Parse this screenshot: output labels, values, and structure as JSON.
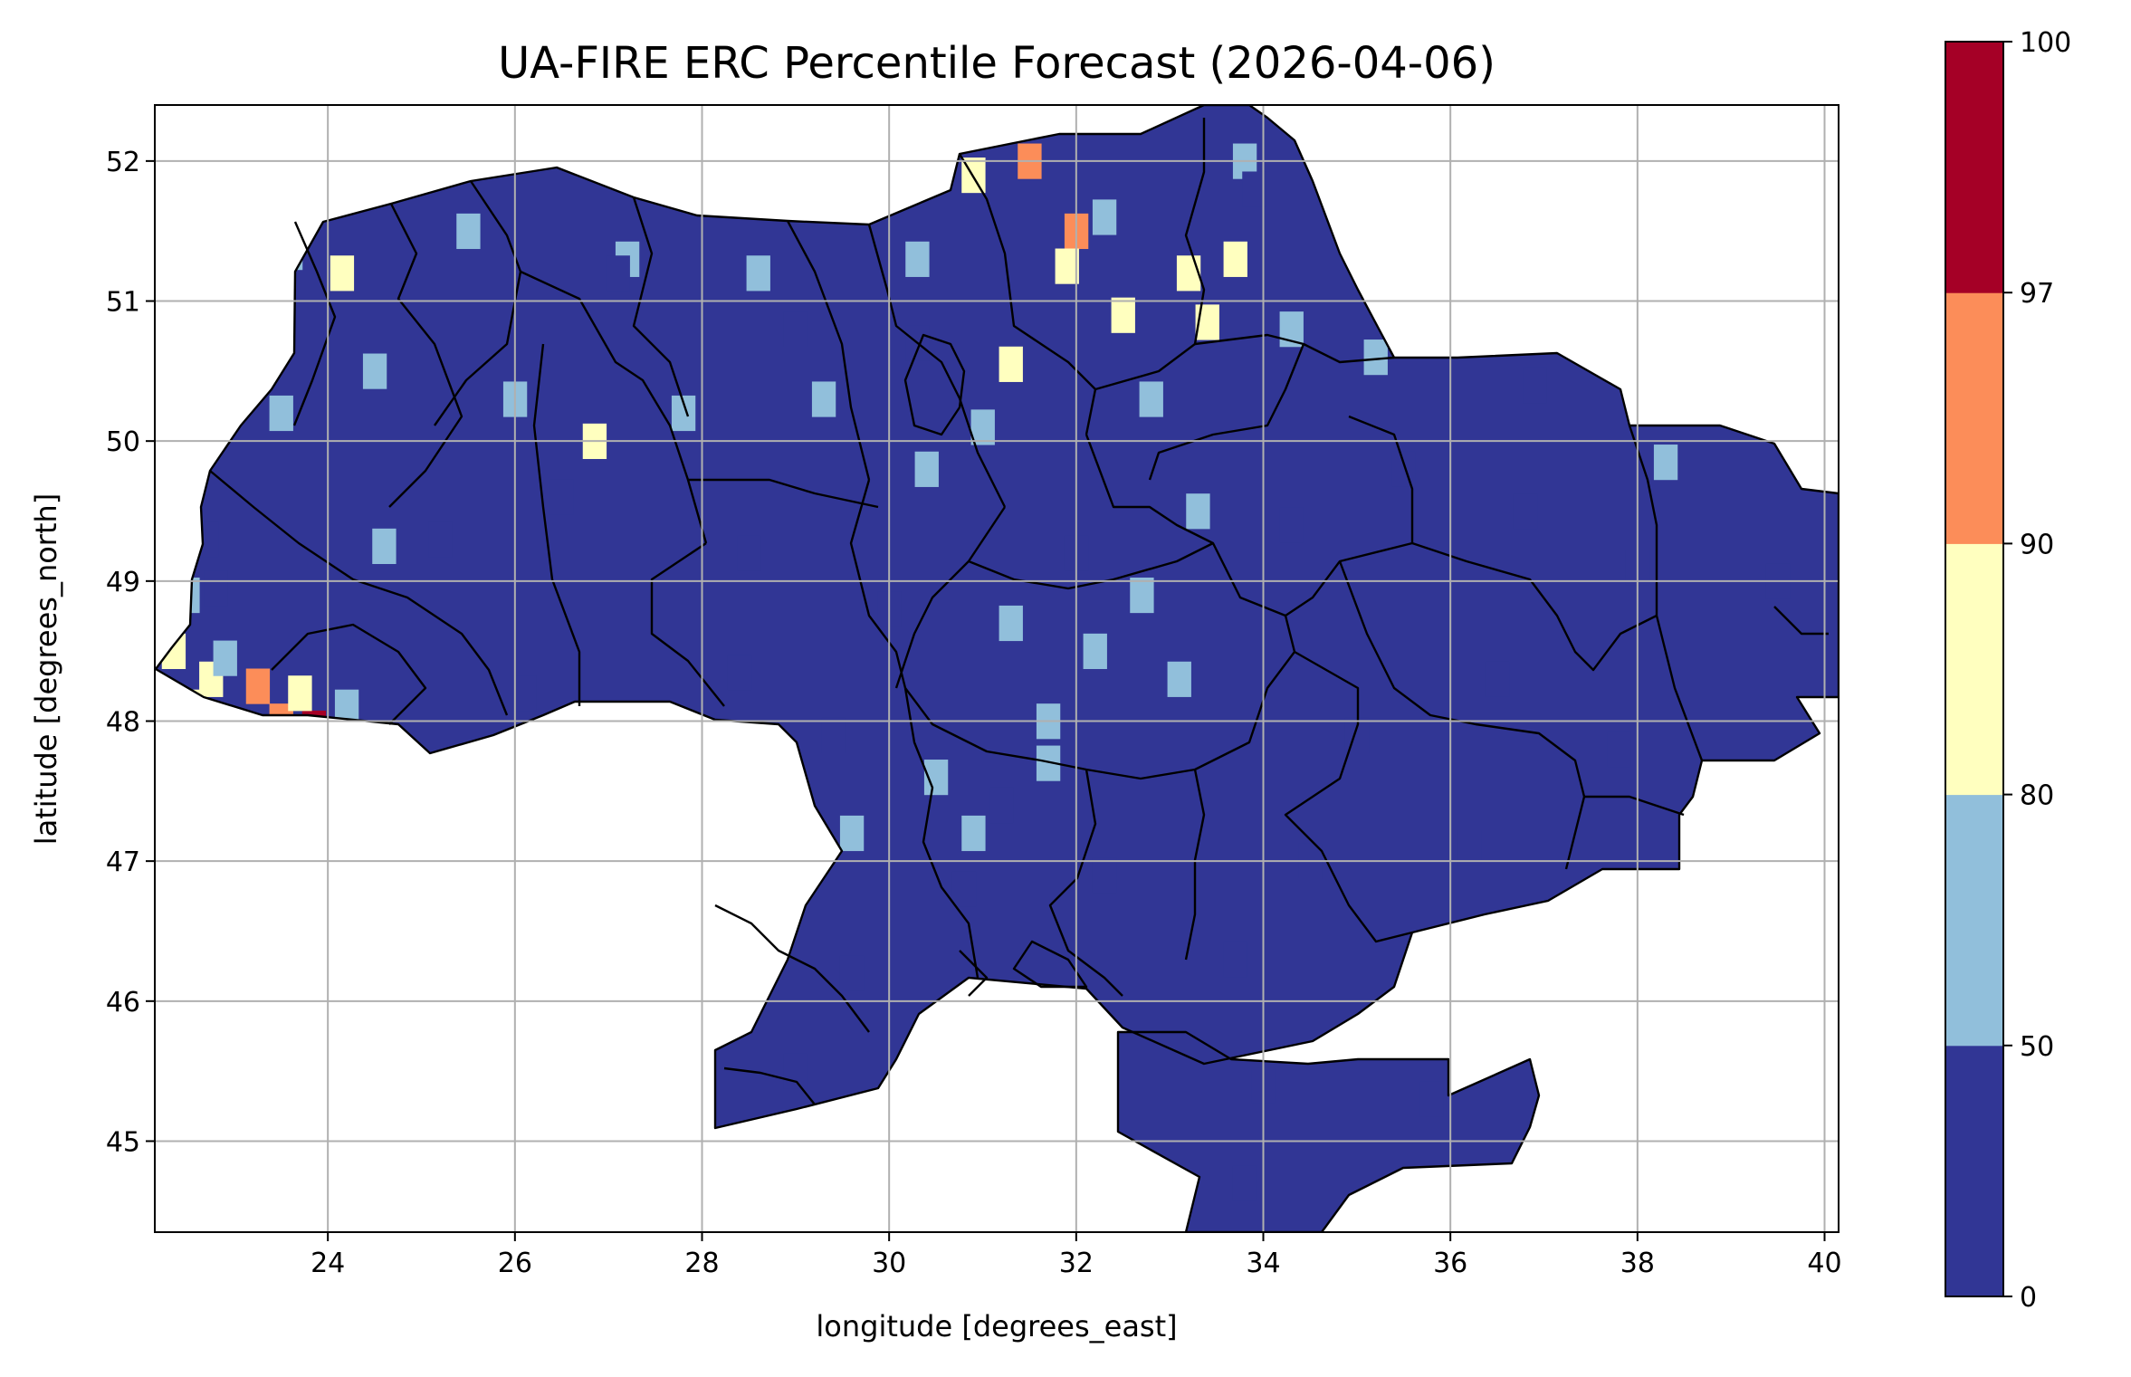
{
  "chart_data": {
    "type": "heatmap",
    "title": "UA-FIRE ERC Percentile Forecast (2026-04-06)",
    "xlabel": "longitude [degrees_east]",
    "ylabel": "latitude [degrees_north]",
    "xlim": [
      22.15,
      40.15
    ],
    "ylim": [
      44.35,
      52.4
    ],
    "xticks": [
      {
        "value": 24,
        "label": "24"
      },
      {
        "value": 26,
        "label": "26"
      },
      {
        "value": 28,
        "label": "28"
      },
      {
        "value": 30,
        "label": "30"
      },
      {
        "value": 32,
        "label": "32"
      },
      {
        "value": 34,
        "label": "34"
      },
      {
        "value": 36,
        "label": "36"
      },
      {
        "value": 38,
        "label": "38"
      },
      {
        "value": 40,
        "label": "40"
      }
    ],
    "yticks": [
      {
        "value": 45,
        "label": "45"
      },
      {
        "value": 46,
        "label": "46"
      },
      {
        "value": 47,
        "label": "47"
      },
      {
        "value": 48,
        "label": "48"
      },
      {
        "value": 49,
        "label": "49"
      },
      {
        "value": 50,
        "label": "50"
      },
      {
        "value": 51,
        "label": "51"
      },
      {
        "value": 52,
        "label": "52"
      }
    ],
    "grid": true,
    "colorbar": {
      "bounds": [
        0,
        50,
        80,
        90,
        97,
        100
      ],
      "tick_labels": [
        "0",
        "50",
        "80",
        "90",
        "97",
        "100"
      ],
      "colors": [
        "#313695",
        "#91bfdb",
        "#ffffbf",
        "#fc8d59",
        "#a50026"
      ]
    },
    "cells": [
      [
        22.25,
        48.75,
        2
      ],
      [
        22.35,
        48.5,
        2
      ],
      [
        22.5,
        48.1,
        2
      ],
      [
        22.75,
        48.3,
        2
      ],
      [
        22.5,
        48.9,
        1
      ],
      [
        22.9,
        48.45,
        1
      ],
      [
        22.8,
        48.95,
        0
      ],
      [
        22.7,
        49.3,
        0
      ],
      [
        23.25,
        48.25,
        3
      ],
      [
        23.5,
        48.0,
        3
      ],
      [
        23.85,
        47.95,
        4
      ],
      [
        23.7,
        48.2,
        2
      ],
      [
        24.2,
        48.1,
        1
      ],
      [
        24.6,
        49.25,
        1
      ],
      [
        23.6,
        51.35,
        1
      ],
      [
        24.15,
        51.2,
        2
      ],
      [
        26.85,
        50.0,
        2
      ],
      [
        31.3,
        50.55,
        2
      ],
      [
        30.9,
        51.9,
        2
      ],
      [
        31.5,
        52.0,
        3
      ],
      [
        32.0,
        51.5,
        3
      ],
      [
        31.9,
        51.25,
        2
      ],
      [
        32.5,
        50.9,
        2
      ],
      [
        33.2,
        51.2,
        2
      ],
      [
        33.7,
        51.3,
        2
      ],
      [
        33.4,
        50.85,
        2
      ],
      [
        29.0,
        51.8,
        2
      ],
      [
        25.5,
        51.5,
        1
      ],
      [
        27.2,
        51.3,
        1
      ],
      [
        28.6,
        51.2,
        1
      ],
      [
        30.3,
        51.3,
        1
      ],
      [
        32.3,
        51.6,
        1
      ],
      [
        33.8,
        52.0,
        1
      ],
      [
        34.3,
        50.8,
        1
      ],
      [
        35.2,
        50.6,
        1
      ],
      [
        26.0,
        50.3,
        1
      ],
      [
        27.8,
        50.2,
        1
      ],
      [
        29.3,
        50.3,
        1
      ],
      [
        31.0,
        50.1,
        1
      ],
      [
        32.8,
        50.3,
        1
      ],
      [
        24.5,
        50.5,
        1
      ],
      [
        23.5,
        50.2,
        1
      ],
      [
        31.3,
        48.7,
        1
      ],
      [
        32.2,
        48.5,
        1
      ],
      [
        32.7,
        48.9,
        1
      ],
      [
        33.1,
        48.3,
        1
      ],
      [
        31.7,
        48.0,
        1
      ],
      [
        30.5,
        47.6,
        1
      ],
      [
        29.6,
        47.2,
        1
      ],
      [
        30.9,
        47.2,
        1
      ],
      [
        31.7,
        47.7,
        1
      ],
      [
        33.3,
        49.5,
        1
      ],
      [
        30.4,
        49.8,
        1
      ],
      [
        38.3,
        49.85,
        1
      ],
      [
        25.2,
        49.3,
        0
      ],
      [
        26.5,
        49.6,
        0
      ],
      [
        28.5,
        49.2,
        0
      ],
      [
        30.0,
        48.8,
        0
      ],
      [
        32.0,
        49.2,
        0
      ],
      [
        34.3,
        49.4,
        0
      ],
      [
        35.5,
        49.8,
        0
      ],
      [
        36.8,
        49.5,
        0
      ],
      [
        38.0,
        49.1,
        0
      ],
      [
        39.5,
        49.0,
        0
      ],
      [
        36.5,
        48.3,
        0
      ],
      [
        35.0,
        47.9,
        0
      ],
      [
        37.8,
        47.8,
        0
      ],
      [
        34.5,
        47.0,
        0
      ],
      [
        36.2,
        47.1,
        0
      ],
      [
        29.4,
        47.9,
        0
      ],
      [
        30.8,
        46.8,
        0
      ],
      [
        32.3,
        46.9,
        0
      ],
      [
        33.7,
        46.3,
        0
      ],
      [
        29.6,
        46.2,
        0
      ],
      [
        29.0,
        45.5,
        0
      ],
      [
        34.0,
        45.4,
        0
      ],
      [
        35.8,
        45.3,
        0
      ],
      [
        33.8,
        44.7,
        0
      ],
      [
        33.9,
        51.8,
        0
      ],
      [
        29.0,
        50.8,
        0
      ],
      [
        27.1,
        51.2,
        0
      ],
      [
        30.3,
        50.7,
        0
      ],
      [
        36.9,
        50.4,
        0
      ],
      [
        26.1,
        48.2,
        0
      ],
      [
        28.4,
        48.35,
        0
      ],
      [
        31.2,
        47.4,
        0
      ]
    ]
  }
}
